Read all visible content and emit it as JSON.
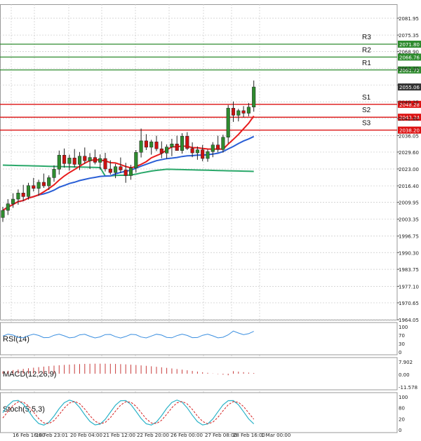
{
  "chart_data": {
    "type": "candlestick",
    "price_axis": {
      "ticks": [
        "2081.95",
        "2075.35",
        "2068.90",
        "2062.30",
        "2055.85",
        "2049.25",
        "2042.80",
        "2036.05",
        "2029.60",
        "2023.00",
        "2016.40",
        "2009.95",
        "2003.35",
        "1996.75",
        "1990.30",
        "1983.75",
        "1977.10",
        "1970.65",
        "1964.05"
      ],
      "range": [
        1964.05,
        2081.95
      ]
    },
    "time_axis": {
      "labels": [
        "16 Feb 16:00",
        "18 Feb 23:01",
        "20 Feb 04:00",
        "21 Feb 12:00",
        "22 Feb 20:00",
        "26 Feb 00:00",
        "27 Feb 08:00",
        "28 Feb 16:00",
        "1 Mar 00:00"
      ]
    },
    "levels": [
      {
        "name": "R3",
        "value": "2071.80",
        "color": "#2e8b2e"
      },
      {
        "name": "R2",
        "value": "2066.76",
        "color": "#2e8b2e"
      },
      {
        "name": "R1",
        "value": "2061.72",
        "color": "#2e8b2e"
      },
      {
        "name": "S1",
        "value": "2048.28",
        "color": "#dd1111"
      },
      {
        "name": "S2",
        "value": "2043.24",
        "color": "#dd1111"
      },
      {
        "name": "S3",
        "value": "2038.20",
        "color": "#dd1111"
      }
    ],
    "last_price": "2055.06",
    "candles": [
      [
        2004.0,
        2008.2,
        2002.3,
        2006.8
      ],
      [
        2006.8,
        2011.2,
        2005.0,
        2009.4
      ],
      [
        2009.4,
        2013.5,
        2007.8,
        2011.2
      ],
      [
        2011.2,
        2015.0,
        2009.0,
        2013.6
      ],
      [
        2013.6,
        2016.8,
        2010.5,
        2012.2
      ],
      [
        2012.2,
        2017.6,
        2011.0,
        2016.5
      ],
      [
        2016.5,
        2019.5,
        2014.2,
        2015.4
      ],
      [
        2015.4,
        2018.8,
        2012.5,
        2017.8
      ],
      [
        2017.8,
        2021.2,
        2015.6,
        2016.4
      ],
      [
        2016.4,
        2020.5,
        2014.8,
        2019.6
      ],
      [
        2019.6,
        2024.4,
        2018.0,
        2022.9
      ],
      [
        2022.9,
        2030.2,
        2020.8,
        2028.4
      ],
      [
        2028.4,
        2031.0,
        2023.5,
        2025.1
      ],
      [
        2025.1,
        2028.6,
        2022.4,
        2027.3
      ],
      [
        2027.3,
        2030.8,
        2023.6,
        2024.8
      ],
      [
        2024.8,
        2029.6,
        2022.6,
        2028.0
      ],
      [
        2028.0,
        2031.4,
        2025.0,
        2026.2
      ],
      [
        2026.2,
        2029.2,
        2023.0,
        2027.5
      ],
      [
        2027.5,
        2030.6,
        2024.8,
        2025.6
      ],
      [
        2025.6,
        2028.7,
        2022.8,
        2027.1
      ],
      [
        2027.1,
        2029.3,
        2022.0,
        2023.0
      ],
      [
        2023.0,
        2026.4,
        2020.8,
        2021.6
      ],
      [
        2021.6,
        2025.0,
        2019.4,
        2023.9
      ],
      [
        2023.9,
        2027.5,
        2021.5,
        2022.6
      ],
      [
        2022.6,
        2025.4,
        2017.6,
        2020.4
      ],
      [
        2020.4,
        2024.6,
        2018.8,
        2023.4
      ],
      [
        2023.4,
        2030.4,
        2021.6,
        2029.5
      ],
      [
        2029.5,
        2038.8,
        2027.5,
        2034.0
      ],
      [
        2034.0,
        2036.6,
        2030.4,
        2031.5
      ],
      [
        2031.5,
        2034.4,
        2028.6,
        2033.6
      ],
      [
        2033.6,
        2036.0,
        2030.0,
        2030.9
      ],
      [
        2030.9,
        2033.8,
        2027.2,
        2029.2
      ],
      [
        2029.2,
        2032.6,
        2027.0,
        2031.6
      ],
      [
        2031.6,
        2034.8,
        2028.0,
        2032.8
      ],
      [
        2032.8,
        2036.0,
        2030.2,
        2030.2
      ],
      [
        2030.2,
        2037.0,
        2029.0,
        2035.8
      ],
      [
        2035.8,
        2037.4,
        2030.4,
        2031.0
      ],
      [
        2031.0,
        2033.4,
        2027.6,
        2029.3
      ],
      [
        2029.3,
        2031.8,
        2026.6,
        2030.5
      ],
      [
        2030.5,
        2032.4,
        2026.0,
        2027.1
      ],
      [
        2027.1,
        2030.6,
        2025.8,
        2029.8
      ],
      [
        2029.8,
        2033.5,
        2027.6,
        2032.4
      ],
      [
        2032.4,
        2036.0,
        2029.5,
        2030.6
      ],
      [
        2030.6,
        2036.4,
        2029.4,
        2035.4
      ],
      [
        2035.4,
        2048.0,
        2033.0,
        2046.8
      ],
      [
        2046.8,
        2049.4,
        2041.4,
        2044.0
      ],
      [
        2044.0,
        2046.5,
        2041.6,
        2045.8
      ],
      [
        2045.8,
        2047.6,
        2043.2,
        2044.8
      ],
      [
        2044.8,
        2048.8,
        2043.6,
        2047.2
      ],
      [
        2047.2,
        2057.6,
        2045.4,
        2055.06
      ]
    ],
    "indicators": [
      {
        "name": "RSI(14)",
        "ticks": [
          "100",
          "70",
          "30",
          "0"
        ]
      },
      {
        "name": "MACD(12,26,9)",
        "ticks": [
          "7.902",
          "0.00",
          "-11.578"
        ]
      },
      {
        "name": "Stoch(5,5,3)",
        "ticks": [
          "100",
          "80",
          "20",
          "0"
        ]
      }
    ],
    "colors": {
      "bull": "#2e8b2e",
      "bear": "#cc1111",
      "ma_red": "#e81c1c",
      "ma_blue": "#2a5fd6",
      "ma_green": "#2aa86a",
      "rsi": "#3b8fe0",
      "macd_hist": "#c83c3c",
      "stoch_main": "#2bb3c8",
      "stoch_signal": "#d42020",
      "grid": "#c8c8c8",
      "price_box": "#333333"
    }
  }
}
